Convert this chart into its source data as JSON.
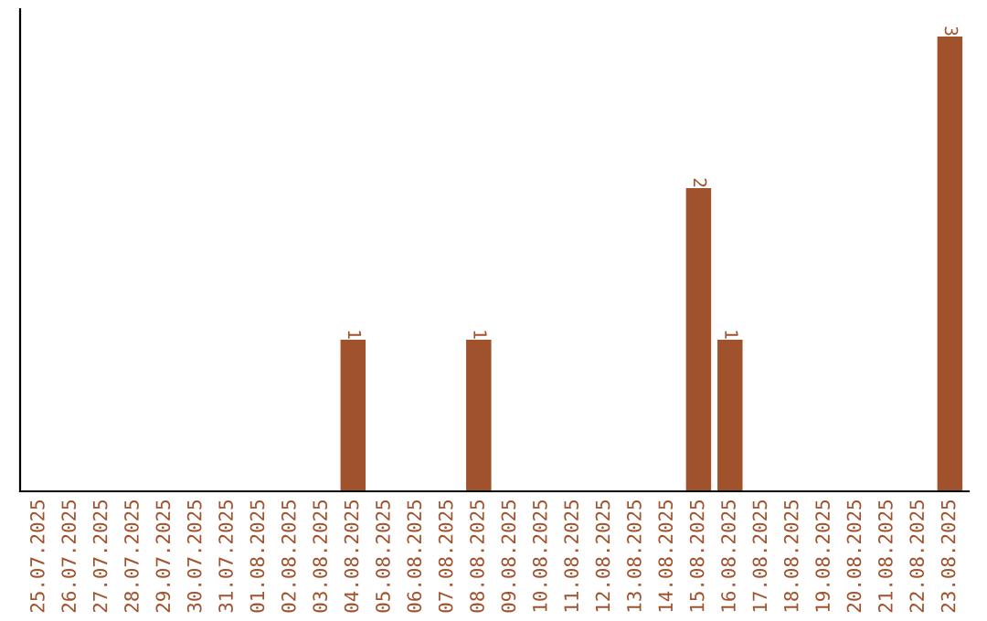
{
  "chart_data": {
    "type": "bar",
    "categories": [
      "25.07.2025",
      "26.07.2025",
      "27.07.2025",
      "28.07.2025",
      "29.07.2025",
      "30.07.2025",
      "31.07.2025",
      "01.08.2025",
      "02.08.2025",
      "03.08.2025",
      "04.08.2025",
      "05.08.2025",
      "06.08.2025",
      "07.08.2025",
      "08.08.2025",
      "09.08.2025",
      "10.08.2025",
      "11.08.2025",
      "12.08.2025",
      "13.08.2025",
      "14.08.2025",
      "15.08.2025",
      "16.08.2025",
      "17.08.2025",
      "18.08.2025",
      "19.08.2025",
      "20.08.2025",
      "21.08.2025",
      "22.08.2025",
      "23.08.2025"
    ],
    "values": [
      null,
      null,
      null,
      null,
      null,
      null,
      null,
      null,
      null,
      null,
      1,
      null,
      null,
      null,
      1,
      null,
      null,
      null,
      null,
      null,
      null,
      2,
      1,
      null,
      null,
      null,
      null,
      null,
      null,
      3
    ],
    "color": "#a0522d",
    "data_labels": true,
    "tick_labels": "x",
    "grid": false
  }
}
